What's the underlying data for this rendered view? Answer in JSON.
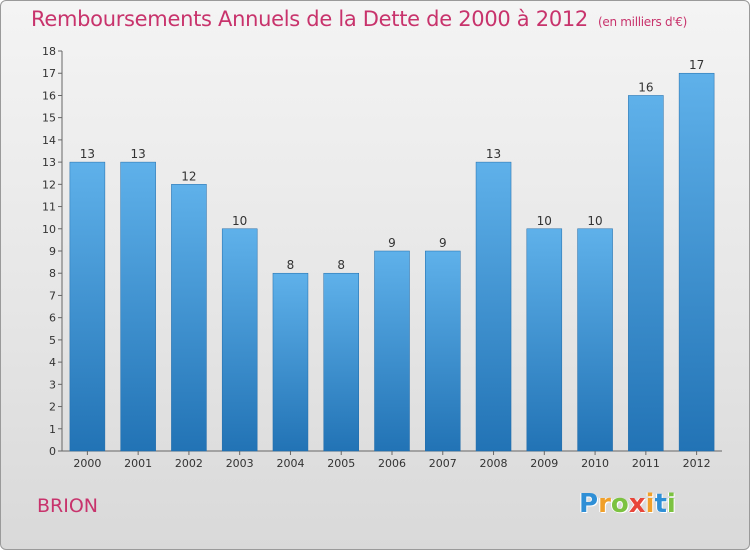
{
  "title": "Remboursements Annuels de la Dette de 2000 à 2012",
  "subtitle": "(en milliers d'€)",
  "commune": "BRION",
  "logo": {
    "text": "Proxiti",
    "letters": [
      "P",
      "r",
      "o",
      "x",
      "i",
      "t",
      "i"
    ],
    "colors": [
      "#2f8fd6",
      "#f0a02a",
      "#7cc241",
      "#e8463a",
      "#f0a02a",
      "#2f8fd6",
      "#7cc241"
    ]
  },
  "colors": {
    "title": "#c8336c",
    "bar_top": "#5fb1ea",
    "bar_bottom": "#2273b5"
  },
  "chart_data": {
    "type": "bar",
    "categories": [
      "2000",
      "2001",
      "2002",
      "2003",
      "2004",
      "2005",
      "2006",
      "2007",
      "2008",
      "2009",
      "2010",
      "2011",
      "2012"
    ],
    "values": [
      13,
      13,
      12,
      10,
      8,
      8,
      9,
      9,
      13,
      10,
      10,
      16,
      17
    ],
    "data_labels": [
      "13",
      "13",
      "12",
      "10",
      "8",
      "8",
      "9",
      "9",
      "13",
      "10",
      "10",
      "16",
      "17"
    ],
    "yticks": [
      "0",
      "1",
      "2",
      "3",
      "4",
      "5",
      "6",
      "7",
      "8",
      "9",
      "10",
      "11",
      "12",
      "13",
      "14",
      "15",
      "16",
      "17",
      "18"
    ],
    "ylim": [
      0,
      18
    ],
    "title": "Remboursements Annuels de la Dette de 2000 à 2012",
    "xlabel": "",
    "ylabel": "",
    "grid": false,
    "legend": "none"
  }
}
